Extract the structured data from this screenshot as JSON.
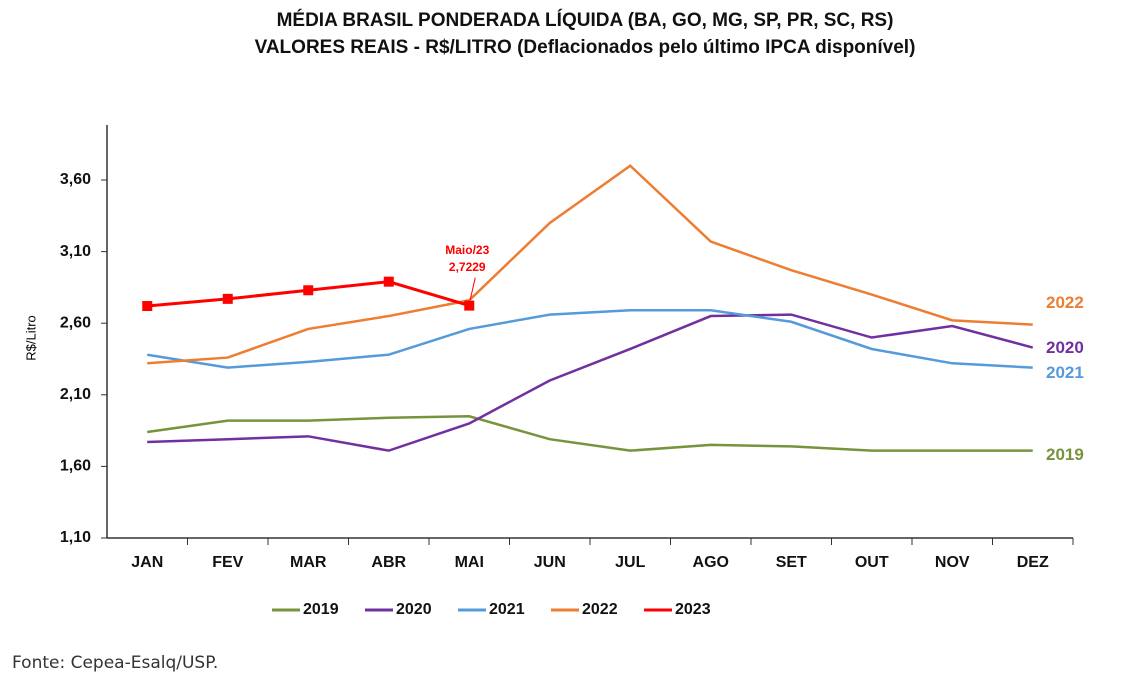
{
  "chart_data": {
    "type": "line",
    "title": "MÉDIA BRASIL PONDERADA LÍQUIDA (BA, GO, MG, SP, PR, SC, RS)",
    "subtitle": "VALORES REAIS - R$/LITRO (Deflacionados  pelo último IPCA disponível)",
    "y_label": "R$/Litro",
    "categories": [
      "JAN",
      "FEV",
      "MAR",
      "ABR",
      "MAI",
      "JUN",
      "JUL",
      "AGO",
      "SET",
      "OUT",
      "NOV",
      "DEZ"
    ],
    "series": [
      {
        "name": "2019",
        "color": "#77933c",
        "values": [
          1.84,
          1.92,
          1.92,
          1.94,
          1.95,
          1.79,
          1.71,
          1.75,
          1.74,
          1.71,
          1.71,
          1.71
        ]
      },
      {
        "name": "2020",
        "color": "#7030a0",
        "values": [
          1.77,
          1.79,
          1.81,
          1.71,
          1.9,
          2.2,
          2.42,
          2.65,
          2.66,
          2.5,
          2.58,
          2.43
        ]
      },
      {
        "name": "2021",
        "color": "#559bdb",
        "values": [
          2.38,
          2.29,
          2.33,
          2.38,
          2.56,
          2.66,
          2.69,
          2.69,
          2.61,
          2.42,
          2.32,
          2.29
        ]
      },
      {
        "name": "2022",
        "color": "#ed7d31",
        "values": [
          2.32,
          2.36,
          2.56,
          2.65,
          2.76,
          3.3,
          3.7,
          3.17,
          2.97,
          2.8,
          2.62,
          2.59
        ]
      },
      {
        "name": "2023",
        "color": "#ff0000",
        "values": [
          2.72,
          2.77,
          2.83,
          2.89,
          2.7229,
          null,
          null,
          null,
          null,
          null,
          null,
          null
        ],
        "value_labels": [
          null,
          null,
          null,
          null,
          "2,7229",
          null,
          null,
          null,
          null,
          null,
          null,
          null
        ]
      }
    ],
    "annotation": "Maio/23",
    "ylim": [
      1.1,
      3.98
    ],
    "yticks": [
      {
        "value": 1.1,
        "label": "1,10"
      },
      {
        "value": 1.6,
        "label": "1,60"
      },
      {
        "value": 2.1,
        "label": "2,10"
      },
      {
        "value": 2.6,
        "label": "2,60"
      },
      {
        "value": 3.1,
        "label": "3,10"
      },
      {
        "value": 3.6,
        "label": "3,60"
      }
    ],
    "grid": false,
    "legend": "bottom"
  },
  "source": "Fonte: Cepea-Esalq/USP."
}
